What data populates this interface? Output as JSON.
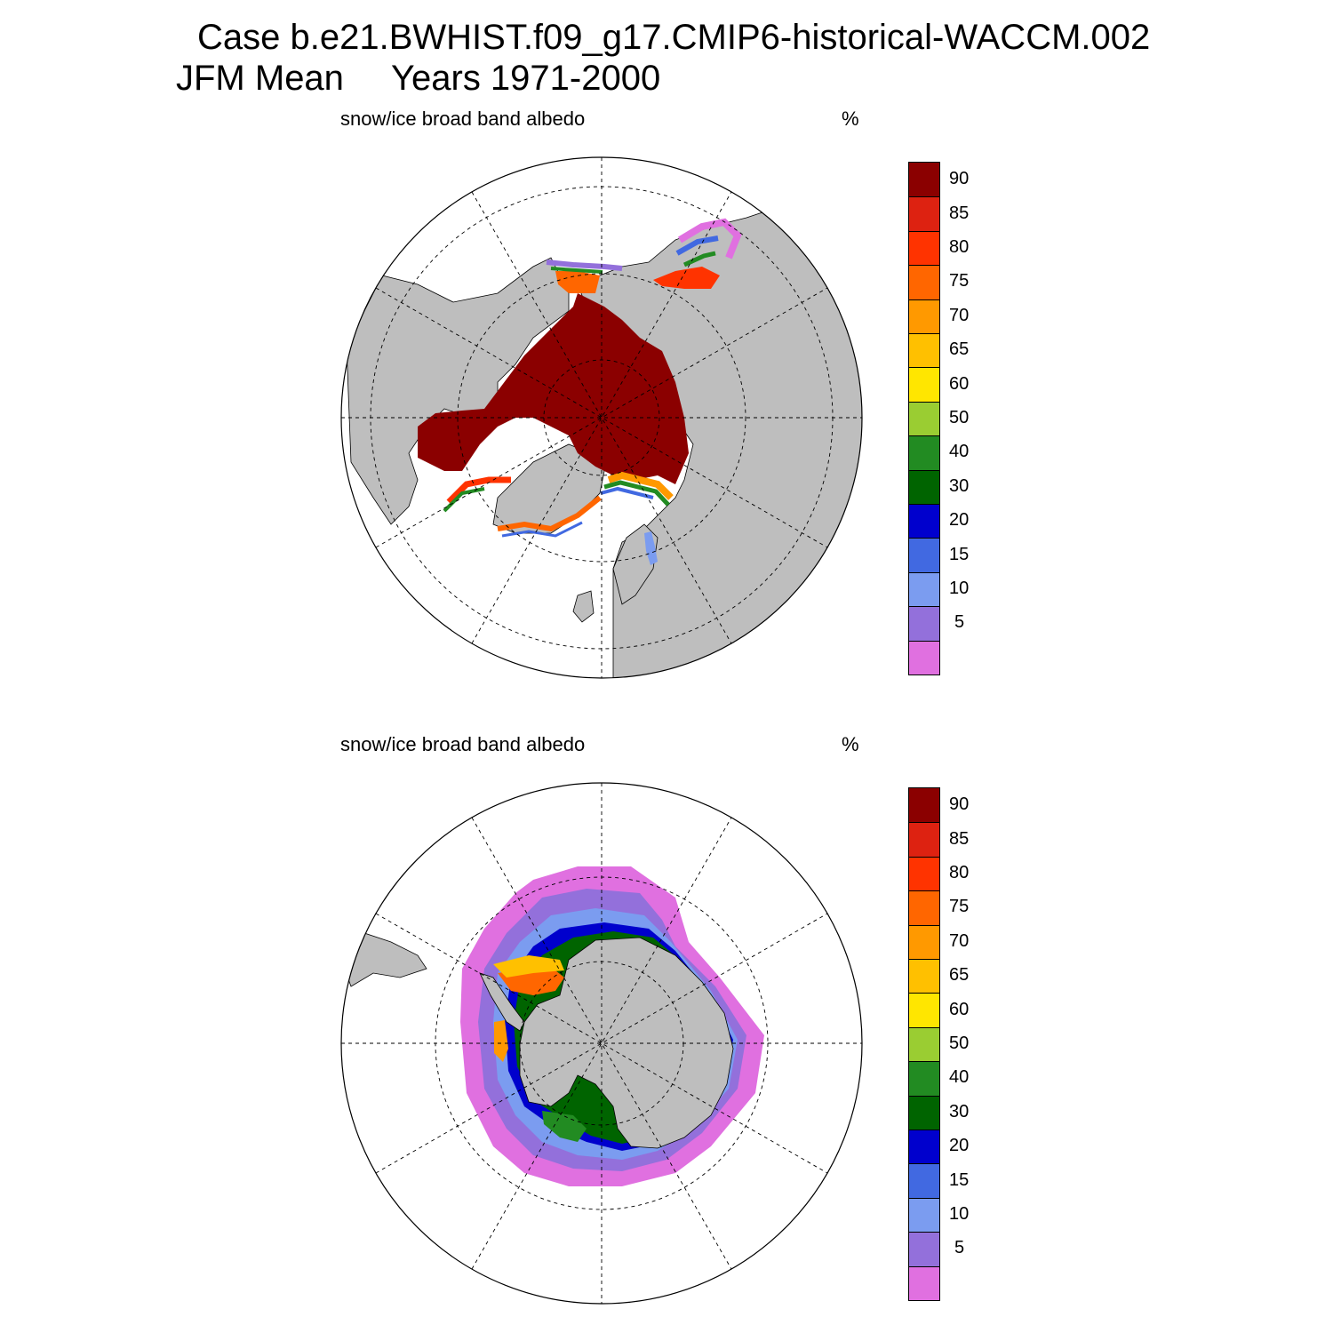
{
  "header": {
    "case_line": "Case b.e21.BWHIST.f09_g17.CMIP6-historical-WACCM.002",
    "season": "JFM Mean",
    "years": "Years 1971-2000"
  },
  "panels": [
    {
      "id": "north",
      "hemisphere": "north",
      "variable_label": "snow/ice broad band albedo",
      "units": "%"
    },
    {
      "id": "south",
      "hemisphere": "south",
      "variable_label": "snow/ice broad band albedo",
      "units": "%"
    }
  ],
  "colorbar": {
    "levels": [
      "5",
      "10",
      "15",
      "20",
      "30",
      "40",
      "50",
      "60",
      "65",
      "70",
      "75",
      "80",
      "85",
      "90"
    ],
    "colors": [
      "#e070e0",
      "#9370db",
      "#7b9cf0",
      "#4169e1",
      "#0000cd",
      "#006400",
      "#228b22",
      "#9acd32",
      "#ffe600",
      "#ffc000",
      "#ff9900",
      "#ff6600",
      "#ff3300",
      "#dd2211",
      "#8b0000"
    ]
  },
  "colors": {
    "land": "#bebebe",
    "ocean": "#ffffff",
    "grid": "#000000"
  }
}
